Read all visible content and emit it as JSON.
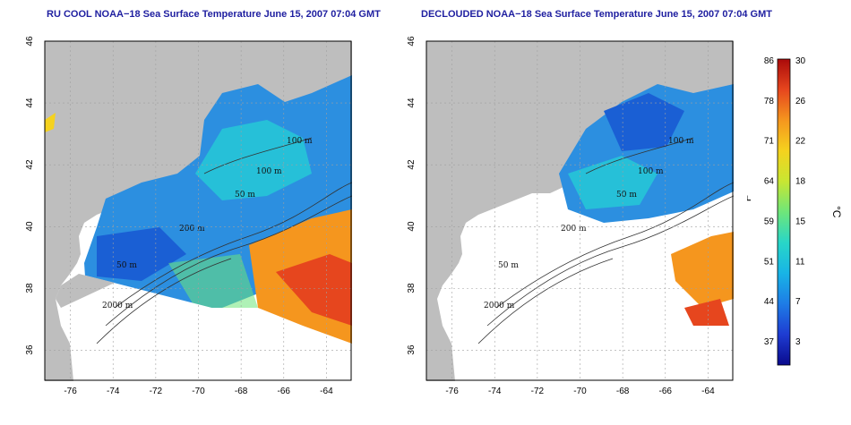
{
  "maps": [
    {
      "title": "RU COOL NOAA−18 Sea Surface Temperature June 15, 2007 07:04 GMT",
      "variant": "raw"
    },
    {
      "title": "DECLOUDED NOAA−18 Sea Surface Temperature June 15, 2007 07:04 GMT",
      "variant": "declouded"
    }
  ],
  "axes": {
    "lon_ticks": [
      "-76",
      "-74",
      "-72",
      "-70",
      "-68",
      "-66",
      "-64"
    ],
    "lat_ticks": [
      "36",
      "38",
      "40",
      "42",
      "44",
      "46"
    ],
    "lon_range": [
      -77.2,
      -62.8
    ],
    "lat_range": [
      35.0,
      46.0
    ]
  },
  "contours": {
    "labels_left": [
      "100 m",
      "100 m",
      "50 m",
      "200 m",
      "50 m",
      "2000 m"
    ],
    "labels_right": [
      "100 m",
      "100 m",
      "50 m",
      "200 m",
      "50 m",
      "2000 m"
    ]
  },
  "colorbar": {
    "f_ticks": [
      "86",
      "78",
      "71",
      "64",
      "59",
      "51",
      "44",
      "37"
    ],
    "c_ticks": [
      "30",
      "26",
      "22",
      "18",
      "15",
      "11",
      "7",
      "3"
    ],
    "f_unit": "°F",
    "c_unit": "°C",
    "colors": [
      "#0a0a8c",
      "#1e3cd2",
      "#1e7ce6",
      "#18b4e6",
      "#28d6c8",
      "#6ee67a",
      "#c8e632",
      "#f5d21e",
      "#f5961e",
      "#e6461e",
      "#aa0a0a"
    ]
  },
  "colors": {
    "land": "#bebebe",
    "ocean_blank": "#ffffff",
    "title": "#1f1fa0",
    "grid": "#a0a0a0"
  }
}
